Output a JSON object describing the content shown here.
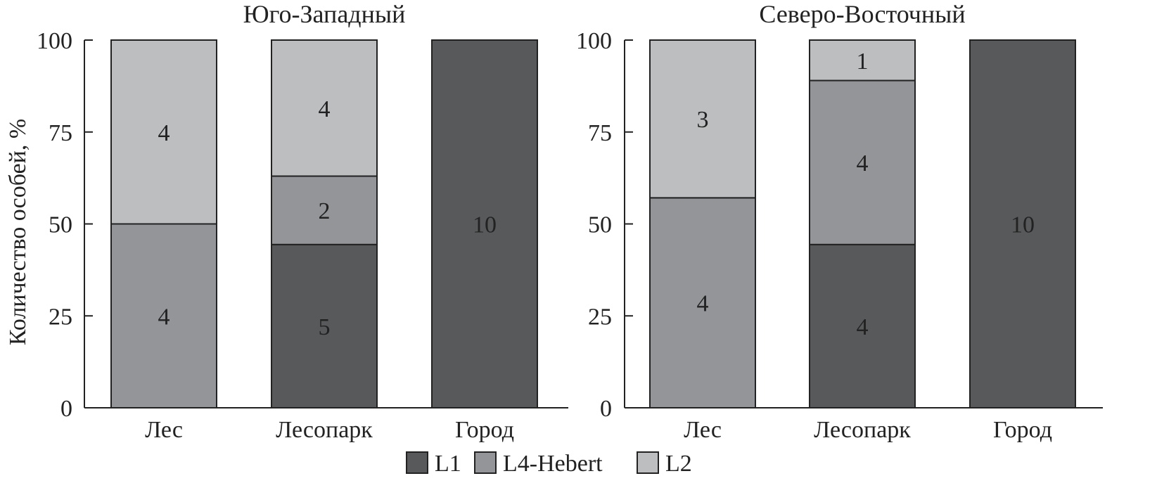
{
  "chart_data": [
    {
      "type": "bar",
      "stacked": true,
      "title": "Юго-Западный",
      "ylabel": "Количество особей, %",
      "ylim": [
        0,
        100
      ],
      "yticks": [
        0,
        25,
        50,
        75,
        100
      ],
      "categories": [
        "Лес",
        "Лесопарк",
        "Город"
      ],
      "series": [
        {
          "name": "L1",
          "values": [
            0,
            44.4,
            100
          ],
          "labels": [
            "",
            "5",
            "10"
          ]
        },
        {
          "name": "L4-Hebert",
          "values": [
            50,
            18.6,
            0
          ],
          "labels": [
            "4",
            "2",
            ""
          ]
        },
        {
          "name": "L2",
          "values": [
            50,
            37.0,
            0
          ],
          "labels": [
            "4",
            "4",
            ""
          ]
        }
      ]
    },
    {
      "type": "bar",
      "stacked": true,
      "title": "Северо-Восточный",
      "ylabel": "",
      "ylim": [
        0,
        100
      ],
      "yticks": [
        0,
        25,
        50,
        75,
        100
      ],
      "categories": [
        "Лес",
        "Лесопарк",
        "Город"
      ],
      "series": [
        {
          "name": "L1",
          "values": [
            0,
            44.4,
            100
          ],
          "labels": [
            "",
            "4",
            "10"
          ]
        },
        {
          "name": "L4-Hebert",
          "values": [
            57.1,
            44.6,
            0
          ],
          "labels": [
            "4",
            "4",
            ""
          ]
        },
        {
          "name": "L2",
          "values": [
            42.9,
            11.0,
            0
          ],
          "labels": [
            "3",
            "",
            ""
          ]
        }
      ],
      "label_overrides": [
        {
          "series": 2,
          "category": 1,
          "label": "1"
        }
      ]
    }
  ],
  "legend": {
    "placement": "bottom-center",
    "items": [
      {
        "name": "L1",
        "color": "#58595b"
      },
      {
        "name": "L4-Hebert",
        "color": "#939598"
      },
      {
        "name": "L2",
        "color": "#bcbec0"
      }
    ]
  },
  "colors": {
    "L1": "#58595b",
    "L4-Hebert": "#939598",
    "L2": "#bcbec0"
  }
}
